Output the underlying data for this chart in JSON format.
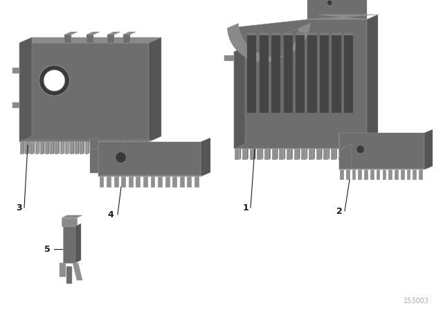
{
  "background_color": "#ffffff",
  "part_color_front": "#6e6e6e",
  "part_color_top": "#8a8a8a",
  "part_color_right": "#555555",
  "part_color_side": "#5a5a5a",
  "part_color_tooth": "#909090",
  "label_color": "#1a1a1a",
  "watermark": "153003",
  "watermark_color": "#aaaaaa",
  "figsize": [
    6.4,
    4.48
  ],
  "dpi": 100
}
